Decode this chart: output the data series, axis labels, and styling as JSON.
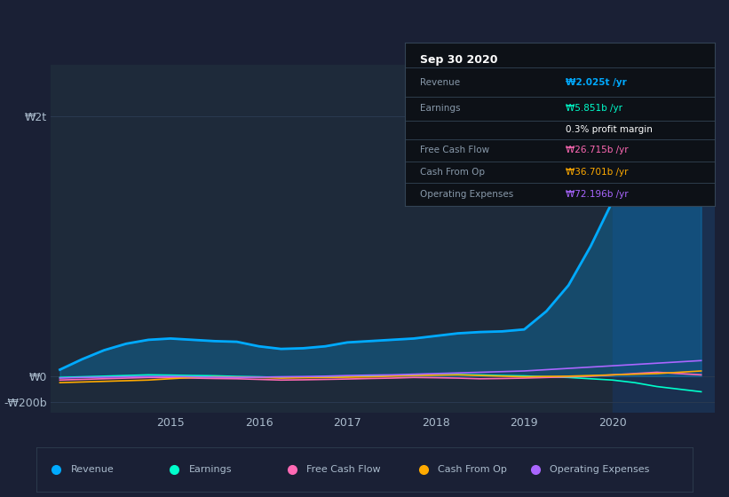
{
  "background_color": "#1a2035",
  "plot_bg_color": "#1e2a3a",
  "highlight_bg_color": "#1a3050",
  "grid_color": "#2a3a50",
  "text_color": "#aabbcc",
  "title_color": "#ffffff",
  "x_years": [
    2013.75,
    2014.0,
    2014.25,
    2014.5,
    2014.75,
    2015.0,
    2015.25,
    2015.5,
    2015.75,
    2016.0,
    2016.25,
    2016.5,
    2016.75,
    2017.0,
    2017.25,
    2017.5,
    2017.75,
    2018.0,
    2018.25,
    2018.5,
    2018.75,
    2019.0,
    2019.25,
    2019.5,
    2019.75,
    2020.0,
    2020.25,
    2020.5,
    2020.75,
    2021.0
  ],
  "revenue": [
    50,
    130,
    200,
    250,
    280,
    290,
    280,
    270,
    265,
    230,
    210,
    215,
    230,
    260,
    270,
    280,
    290,
    310,
    330,
    340,
    345,
    360,
    500,
    700,
    1000,
    1350,
    1600,
    1900,
    2100,
    2300
  ],
  "earnings": [
    -10,
    -5,
    0,
    5,
    10,
    8,
    5,
    3,
    -2,
    -5,
    -10,
    -8,
    -5,
    -2,
    2,
    5,
    8,
    10,
    12,
    10,
    5,
    2,
    -5,
    -10,
    -20,
    -30,
    -50,
    -80,
    -100,
    -120
  ],
  "free_cash_flow": [
    -30,
    -25,
    -20,
    -15,
    -10,
    -12,
    -15,
    -18,
    -20,
    -25,
    -30,
    -28,
    -25,
    -22,
    -18,
    -15,
    -10,
    -12,
    -15,
    -20,
    -18,
    -15,
    -10,
    -5,
    0,
    10,
    20,
    30,
    20,
    10
  ],
  "cash_from_op": [
    -50,
    -45,
    -40,
    -35,
    -30,
    -20,
    -10,
    -5,
    -8,
    -10,
    -15,
    -12,
    -10,
    -8,
    -5,
    0,
    5,
    8,
    10,
    5,
    0,
    -5,
    -2,
    0,
    5,
    10,
    15,
    20,
    30,
    40
  ],
  "operating_expenses": [
    -15,
    -10,
    -8,
    -5,
    -3,
    -2,
    -5,
    -8,
    -10,
    -8,
    -5,
    -3,
    0,
    5,
    8,
    10,
    15,
    20,
    25,
    30,
    35,
    40,
    50,
    60,
    70,
    80,
    90,
    100,
    110,
    120
  ],
  "revenue_color": "#00aaff",
  "earnings_color": "#00ffcc",
  "free_cash_flow_color": "#ff69b4",
  "cash_from_op_color": "#ffaa00",
  "operating_expenses_color": "#aa66ff",
  "highlight_start": 2020.0,
  "ylim_top": 2400,
  "ylim_bottom": -280,
  "ytick_labels": [
    "₩2t",
    "₩0",
    "-₩200b"
  ],
  "ytick_values": [
    2000,
    0,
    -200
  ],
  "xtick_labels": [
    "2015",
    "2016",
    "2017",
    "2018",
    "2019",
    "2020"
  ],
  "xtick_values": [
    2015,
    2016,
    2017,
    2018,
    2019,
    2020
  ],
  "tooltip_title": "Sep 30 2020",
  "tooltip_rows": [
    {
      "label": "Revenue",
      "value": "₩2.025t /yr",
      "value_color": "#00aaff"
    },
    {
      "label": "Earnings",
      "value": "₩5.851b /yr",
      "value_color": "#00ffcc"
    },
    {
      "label": "",
      "value": "0.3% profit margin",
      "value_color": "#ffffff"
    },
    {
      "label": "Free Cash Flow",
      "value": "₩26.715b /yr",
      "value_color": "#ff69b4"
    },
    {
      "label": "Cash From Op",
      "value": "₩36.701b /yr",
      "value_color": "#ffaa00"
    },
    {
      "label": "Operating Expenses",
      "value": "₩72.196b /yr",
      "value_color": "#aa66ff"
    }
  ],
  "legend_items": [
    {
      "label": "Revenue",
      "color": "#00aaff"
    },
    {
      "label": "Earnings",
      "color": "#00ffcc"
    },
    {
      "label": "Free Cash Flow",
      "color": "#ff69b4"
    },
    {
      "label": "Cash From Op",
      "color": "#ffaa00"
    },
    {
      "label": "Operating Expenses",
      "color": "#aa66ff"
    }
  ]
}
